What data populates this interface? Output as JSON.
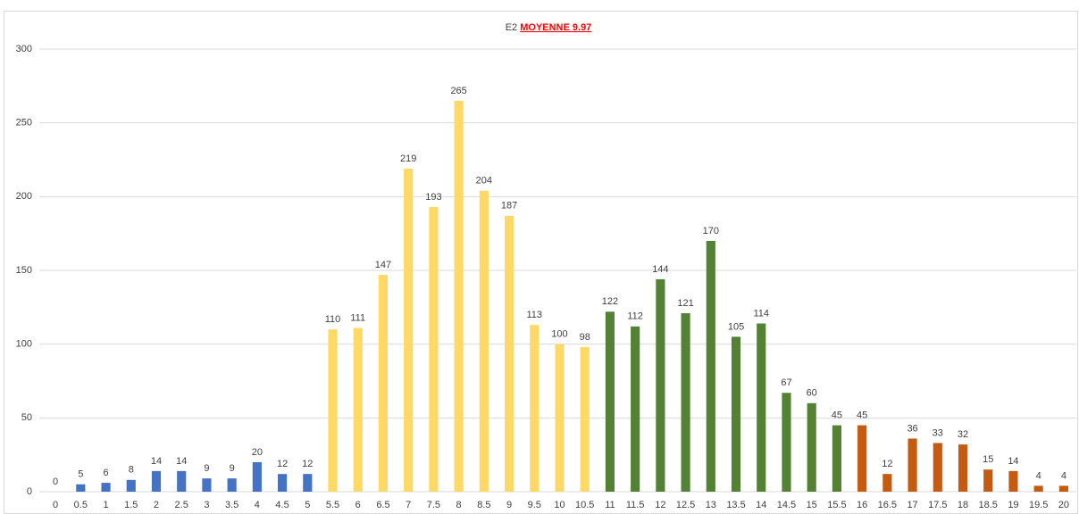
{
  "chart_data": {
    "type": "bar",
    "title": "E2",
    "title_highlight": "MOYENNE 9.97",
    "categories": [
      "0",
      "0.5",
      "1",
      "1.5",
      "2",
      "2.5",
      "3",
      "3.5",
      "4",
      "4.5",
      "5",
      "5.5",
      "6",
      "6.5",
      "7",
      "7.5",
      "8",
      "8.5",
      "9",
      "9.5",
      "10",
      "10.5",
      "11",
      "11.5",
      "12",
      "12.5",
      "13",
      "13.5",
      "14",
      "14.5",
      "15",
      "15.5",
      "16",
      "16.5",
      "17",
      "17.5",
      "18",
      "18.5",
      "19",
      "19.5",
      "20"
    ],
    "values": [
      0,
      5,
      6,
      8,
      14,
      14,
      9,
      9,
      20,
      12,
      12,
      110,
      111,
      147,
      219,
      193,
      265,
      204,
      187,
      113,
      100,
      98,
      122,
      112,
      144,
      121,
      170,
      105,
      114,
      67,
      60,
      45,
      45,
      12,
      36,
      33,
      32,
      15,
      14,
      4,
      4
    ],
    "colors": [
      "#4472c4",
      "#4472c4",
      "#4472c4",
      "#4472c4",
      "#4472c4",
      "#4472c4",
      "#4472c4",
      "#4472c4",
      "#4472c4",
      "#4472c4",
      "#4472c4",
      "#ffd966",
      "#ffd966",
      "#ffd966",
      "#ffd966",
      "#ffd966",
      "#ffd966",
      "#ffd966",
      "#ffd966",
      "#ffd966",
      "#ffd966",
      "#ffd966",
      "#548235",
      "#548235",
      "#548235",
      "#548235",
      "#548235",
      "#548235",
      "#548235",
      "#548235",
      "#548235",
      "#548235",
      "#c55a11",
      "#c55a11",
      "#c55a11",
      "#c55a11",
      "#c55a11",
      "#c55a11",
      "#c55a11",
      "#c55a11",
      "#c55a11"
    ],
    "ylim": [
      0,
      300
    ],
    "yticks": [
      0,
      50,
      100,
      150,
      200,
      250,
      300
    ],
    "grid": true
  }
}
